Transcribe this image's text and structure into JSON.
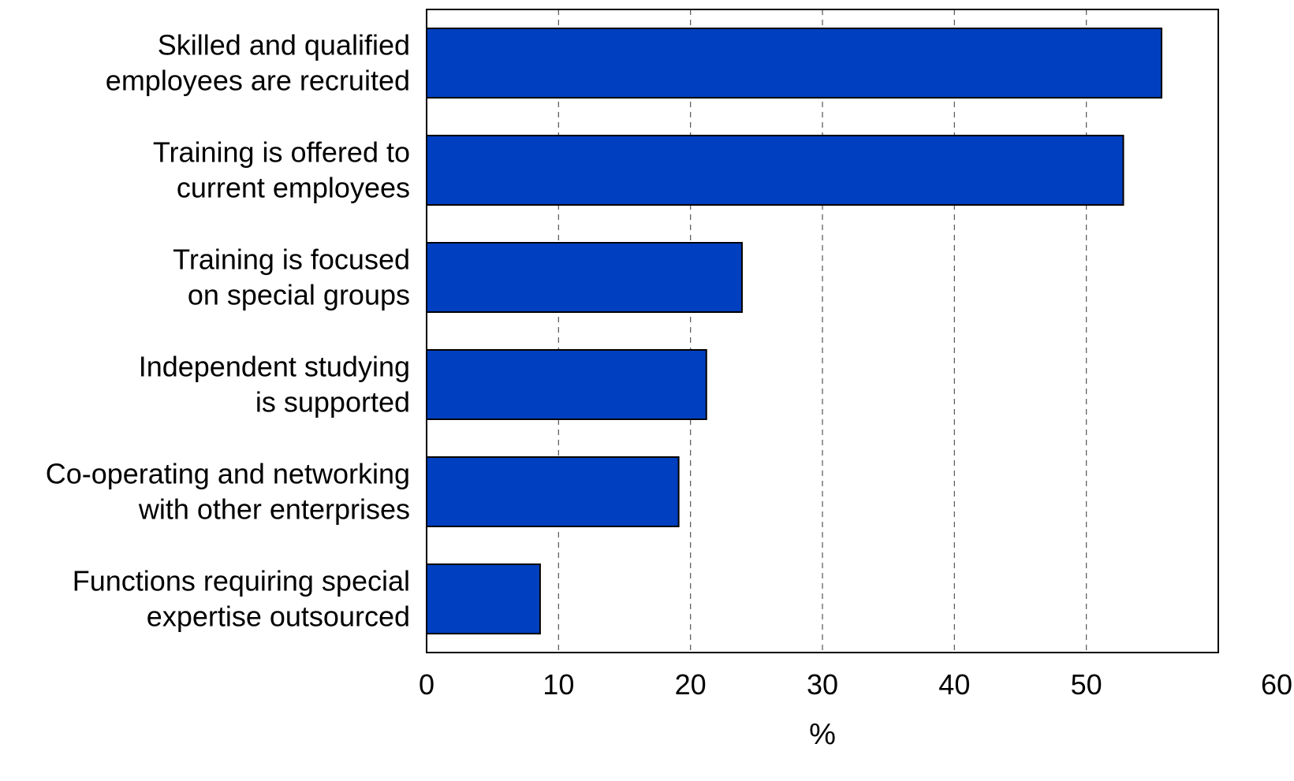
{
  "chart_data": {
    "type": "bar",
    "orientation": "horizontal",
    "categories": [
      [
        "Skilled and qualified",
        "employees are recruited"
      ],
      [
        "Training is offered to",
        "current employees"
      ],
      [
        "Training is focused",
        "on special groups"
      ],
      [
        "Independent studying",
        "is supported"
      ],
      [
        "Co-operating and networking",
        "with other enterprises"
      ],
      [
        "Functions requiring special",
        "expertise outsourced"
      ]
    ],
    "values": [
      55.7,
      52.8,
      23.9,
      21.2,
      19.1,
      8.6
    ],
    "xlabel": "%",
    "ylabel": "",
    "title": "",
    "xlim": [
      0,
      60
    ],
    "xticks": [
      "0",
      "10",
      "20",
      "30",
      "40",
      "50",
      "60"
    ],
    "grid": "vertical-dashed",
    "colors": {
      "bar_fill": "#0040C0",
      "bar_stroke": "#000000",
      "grid": "#555555",
      "axis": "#000000"
    }
  }
}
